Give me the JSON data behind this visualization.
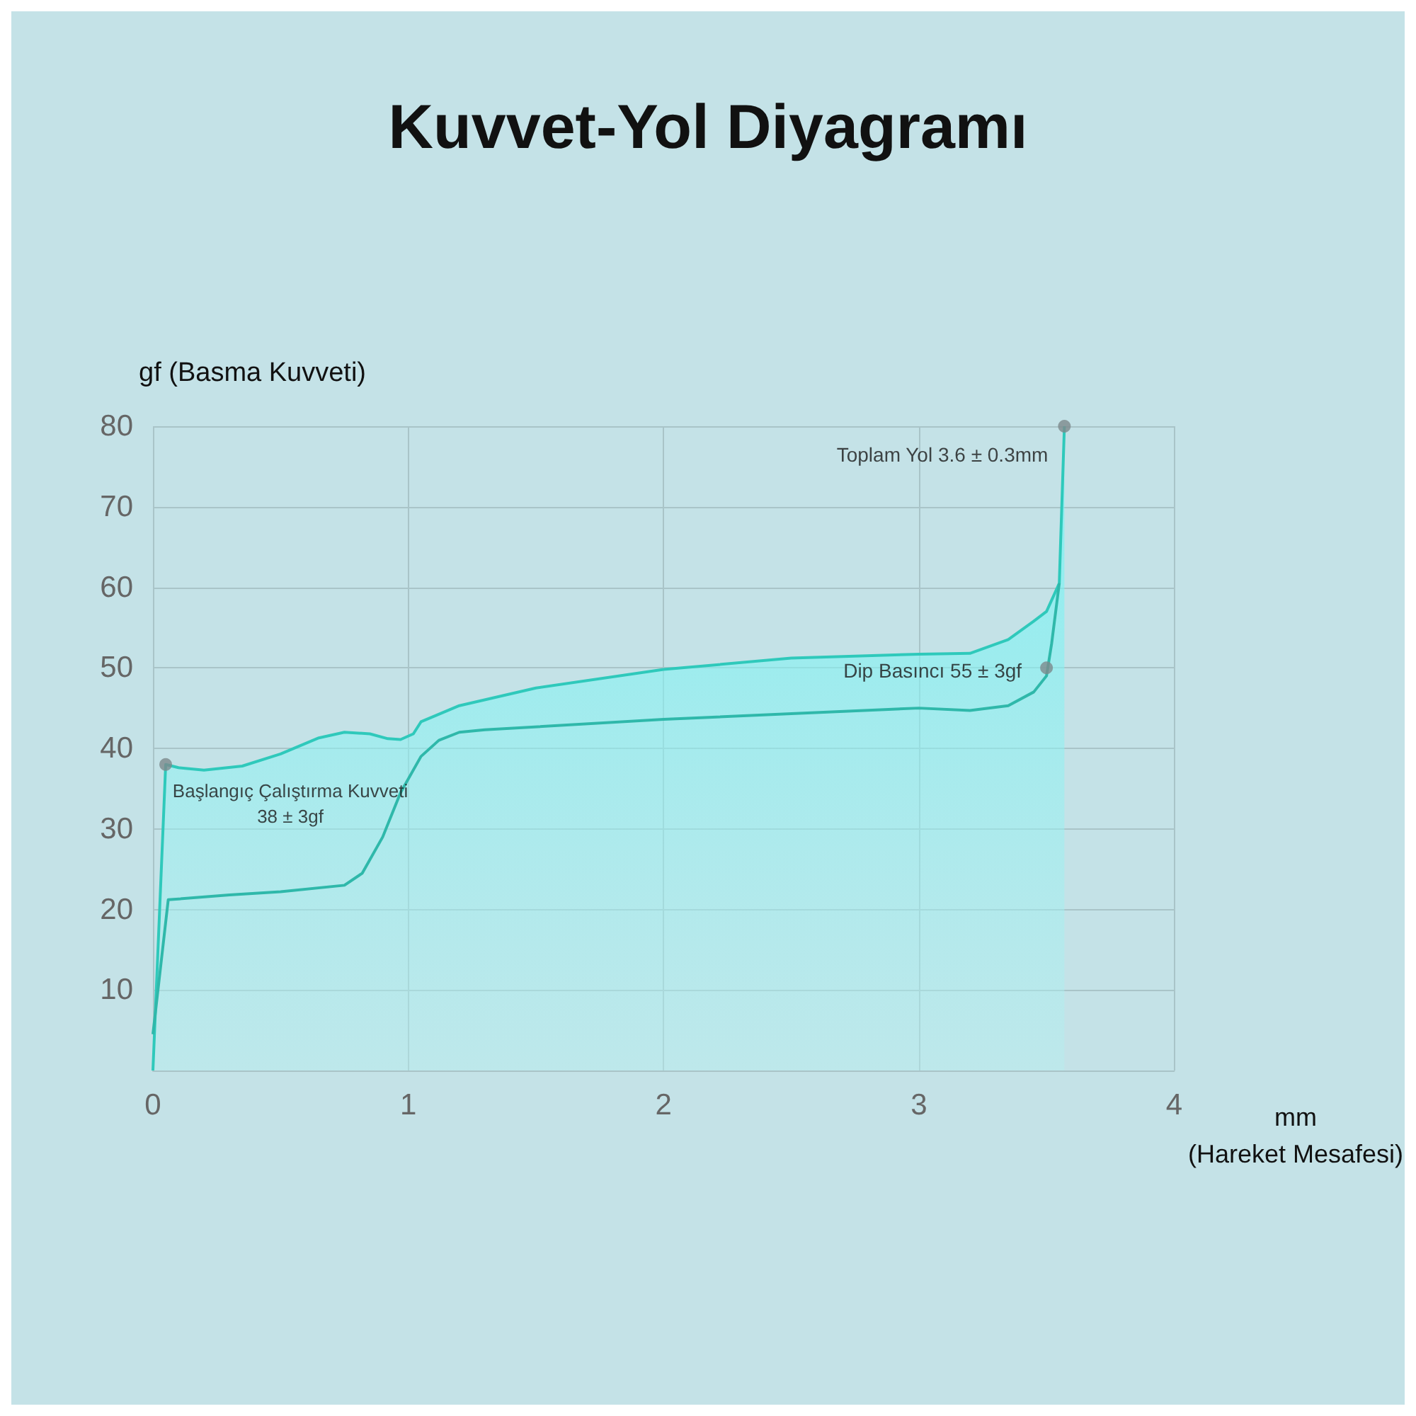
{
  "chart_data": {
    "type": "area",
    "title": "Kuvvet-Yol Diyagramı",
    "xlabel": "mm\n(Hareket Mesafesi)",
    "ylabel": "gf (Basma Kuvveti)",
    "xlim": [
      0,
      4
    ],
    "xticks": [
      0,
      1,
      2,
      3,
      4
    ],
    "ylim": [
      0,
      80
    ],
    "yticks": [
      10,
      20,
      30,
      40,
      50,
      60,
      70,
      80
    ],
    "grid": true,
    "marker": "none",
    "series": [
      {
        "color": "#2fc9bb",
        "x": [
          0,
          0.05,
          0.1,
          0.2,
          0.35,
          0.5,
          0.65,
          0.75,
          0.85,
          0.92,
          0.97,
          1.02,
          1.05,
          1.2,
          1.5,
          2,
          2.5,
          3,
          3.2,
          3.35,
          3.45,
          3.5,
          3.55,
          3.57
        ],
        "values": [
          0,
          38,
          37.6,
          37.3,
          37.8,
          39.3,
          41.3,
          42,
          41.8,
          41.2,
          41.1,
          41.8,
          43.3,
          45.3,
          47.5,
          49.8,
          51.2,
          51.7,
          51.8,
          53.5,
          55.8,
          57,
          60.5,
          80
        ]
      },
      {
        "type": "line",
        "color": "#2fb8aa",
        "x": [
          0,
          0.06,
          0.3,
          0.5,
          0.75,
          0.82,
          0.9,
          0.97,
          1.05,
          1.12,
          1.2,
          1.3,
          2,
          2.5,
          3,
          3.2,
          3.35,
          3.45,
          3.5,
          3.52,
          3.55
        ],
        "values": [
          4.5,
          21.2,
          21.8,
          22.2,
          23,
          24.5,
          29,
          34.5,
          39,
          41,
          42,
          42.3,
          43.6,
          44.3,
          45,
          44.7,
          45.3,
          47,
          49,
          53,
          60.5
        ]
      }
    ],
    "annotations": [
      {
        "text": "Başlangıç Çalıştırma Kuvveti\n38 ± 3gf",
        "x": 0.05,
        "y": 38
      },
      {
        "text": "Dip Basıncı 55 ± 3gf",
        "x": 3.5,
        "y": 50
      },
      {
        "text": "Toplam Yol 3.6 ± 0.3mm",
        "x": 3.57,
        "y": 80
      }
    ]
  }
}
